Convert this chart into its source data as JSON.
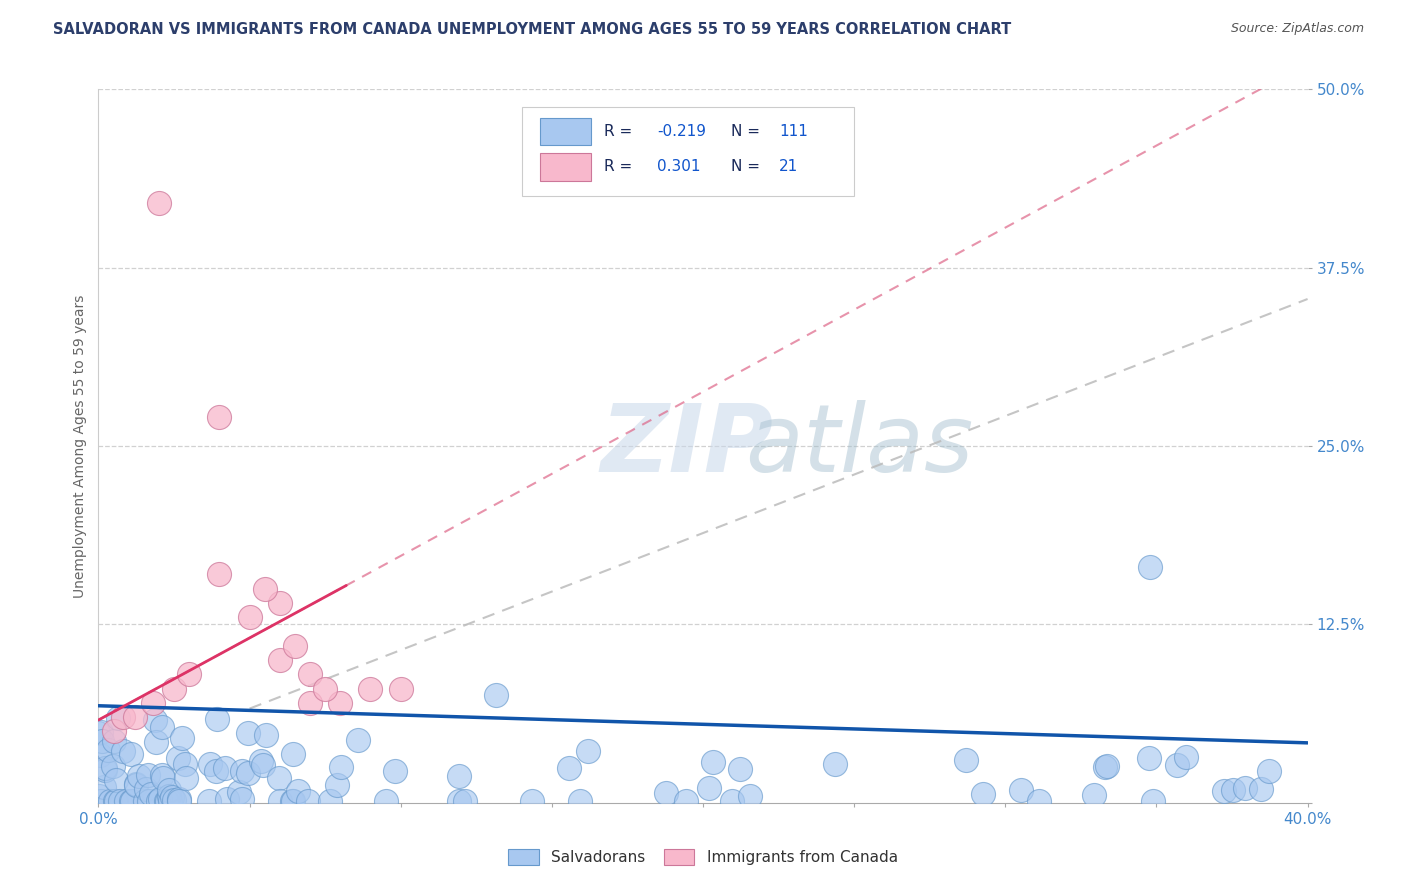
{
  "title": "SALVADORAN VS IMMIGRANTS FROM CANADA UNEMPLOYMENT AMONG AGES 55 TO 59 YEARS CORRELATION CHART",
  "source": "Source: ZipAtlas.com",
  "ylabel": "Unemployment Among Ages 55 to 59 years",
  "xlim": [
    0.0,
    0.4
  ],
  "ylim": [
    0.0,
    0.5
  ],
  "legend_blue_r": "-0.219",
  "legend_blue_n": "111",
  "legend_pink_r": "0.301",
  "legend_pink_n": "21",
  "blue_scatter_color": "#a8c8f0",
  "blue_edge_color": "#6699cc",
  "pink_scatter_color": "#f8b8cc",
  "pink_edge_color": "#cc7799",
  "blue_line_color": "#1155aa",
  "pink_line_color": "#dd3366",
  "pink_dash_color": "#dd6688",
  "gray_dash_color": "#bbbbbb",
  "grid_color": "#cccccc",
  "watermark_zip_color": "#c5d8e8",
  "watermark_atlas_color": "#9fbfd8",
  "title_color": "#2c3e6b",
  "source_color": "#555555",
  "axis_label_color": "#666666",
  "tick_color": "#4488cc",
  "background_color": "#ffffff",
  "legend_text_color": "#1a2a5a",
  "legend_value_color": "#1155cc",
  "blue_R": -0.219,
  "blue_N": 111,
  "pink_R": 0.301,
  "pink_N": 21
}
